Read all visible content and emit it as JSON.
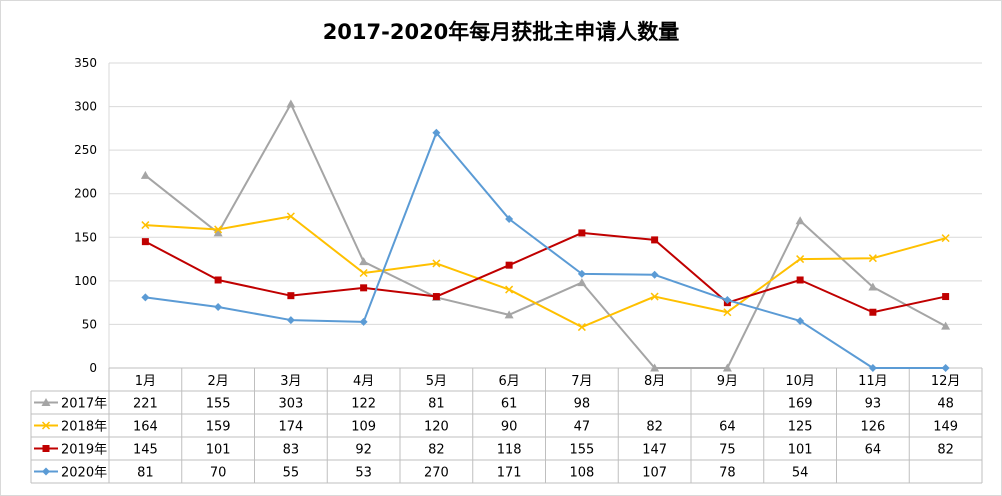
{
  "chart_data": {
    "type": "line",
    "title": "2017-2020年每月获批主申请人数量",
    "categories": [
      "1月",
      "2月",
      "3月",
      "4月",
      "5月",
      "6月",
      "7月",
      "8月",
      "9月",
      "10月",
      "11月",
      "12月"
    ],
    "ylim": [
      0,
      350
    ],
    "yticks": [
      "0",
      "50",
      "100",
      "150",
      "200",
      "250",
      "300",
      "350"
    ],
    "grid": true,
    "legend": "data-table",
    "series": [
      {
        "name": "2017年",
        "color": "#A5A5A5",
        "marker": "triangle",
        "values": [
          221,
          155,
          303,
          122,
          81,
          61,
          98,
          null,
          null,
          169,
          93,
          48
        ],
        "plotted": [
          221,
          155,
          303,
          122,
          81,
          61,
          98,
          0,
          0,
          169,
          93,
          48
        ]
      },
      {
        "name": "2018年",
        "color": "#FFC000",
        "marker": "x",
        "values": [
          164,
          159,
          174,
          109,
          120,
          90,
          47,
          82,
          64,
          125,
          126,
          149
        ],
        "plotted": [
          164,
          159,
          174,
          109,
          120,
          90,
          47,
          82,
          64,
          125,
          126,
          149
        ]
      },
      {
        "name": "2019年",
        "color": "#C00000",
        "marker": "square",
        "values": [
          145,
          101,
          83,
          92,
          82,
          118,
          155,
          147,
          75,
          101,
          64,
          82
        ],
        "plotted": [
          145,
          101,
          83,
          92,
          82,
          118,
          155,
          147,
          75,
          101,
          64,
          82
        ]
      },
      {
        "name": "2020年",
        "color": "#5B9BD5",
        "marker": "diamond",
        "values": [
          81,
          70,
          55,
          53,
          270,
          171,
          108,
          107,
          78,
          54,
          null,
          null
        ],
        "plotted": [
          81,
          70,
          55,
          53,
          270,
          171,
          108,
          107,
          78,
          54,
          0,
          0
        ]
      }
    ]
  }
}
